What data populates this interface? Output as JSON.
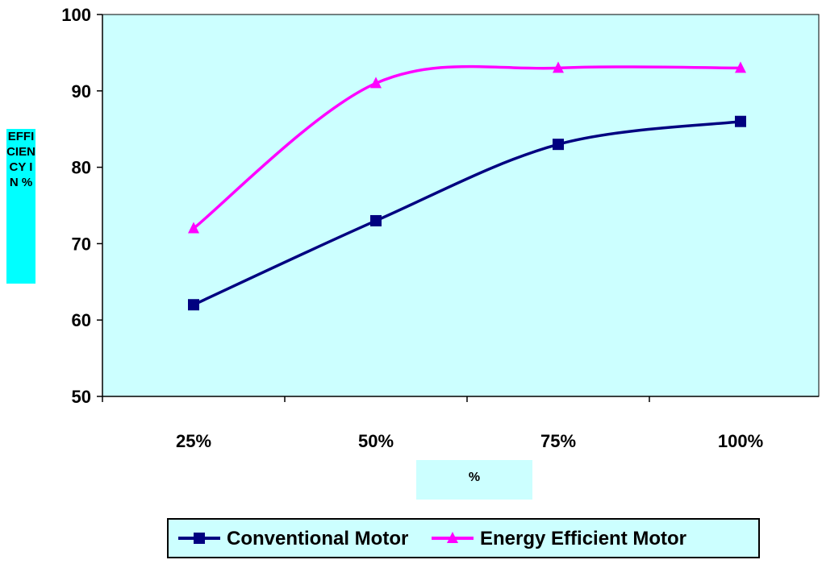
{
  "chart_data": {
    "type": "line",
    "categories": [
      "25%",
      "50%",
      "75%",
      "100%"
    ],
    "series": [
      {
        "name": "Conventional Motor",
        "color": "#000080",
        "marker": "square",
        "values": [
          62,
          73,
          83,
          86
        ]
      },
      {
        "name": "Energy Efficient Motor",
        "color": "#ff00ff",
        "marker": "triangle",
        "values": [
          72,
          91,
          93,
          93
        ]
      }
    ],
    "ylabel": "EFFICIENCY IN %",
    "xlabel": "%",
    "ylim": [
      50,
      100
    ],
    "yticks": [
      50,
      60,
      70,
      80,
      90,
      100
    ],
    "plot_background": "#ccffff",
    "grid": false,
    "legend_position": "bottom"
  }
}
